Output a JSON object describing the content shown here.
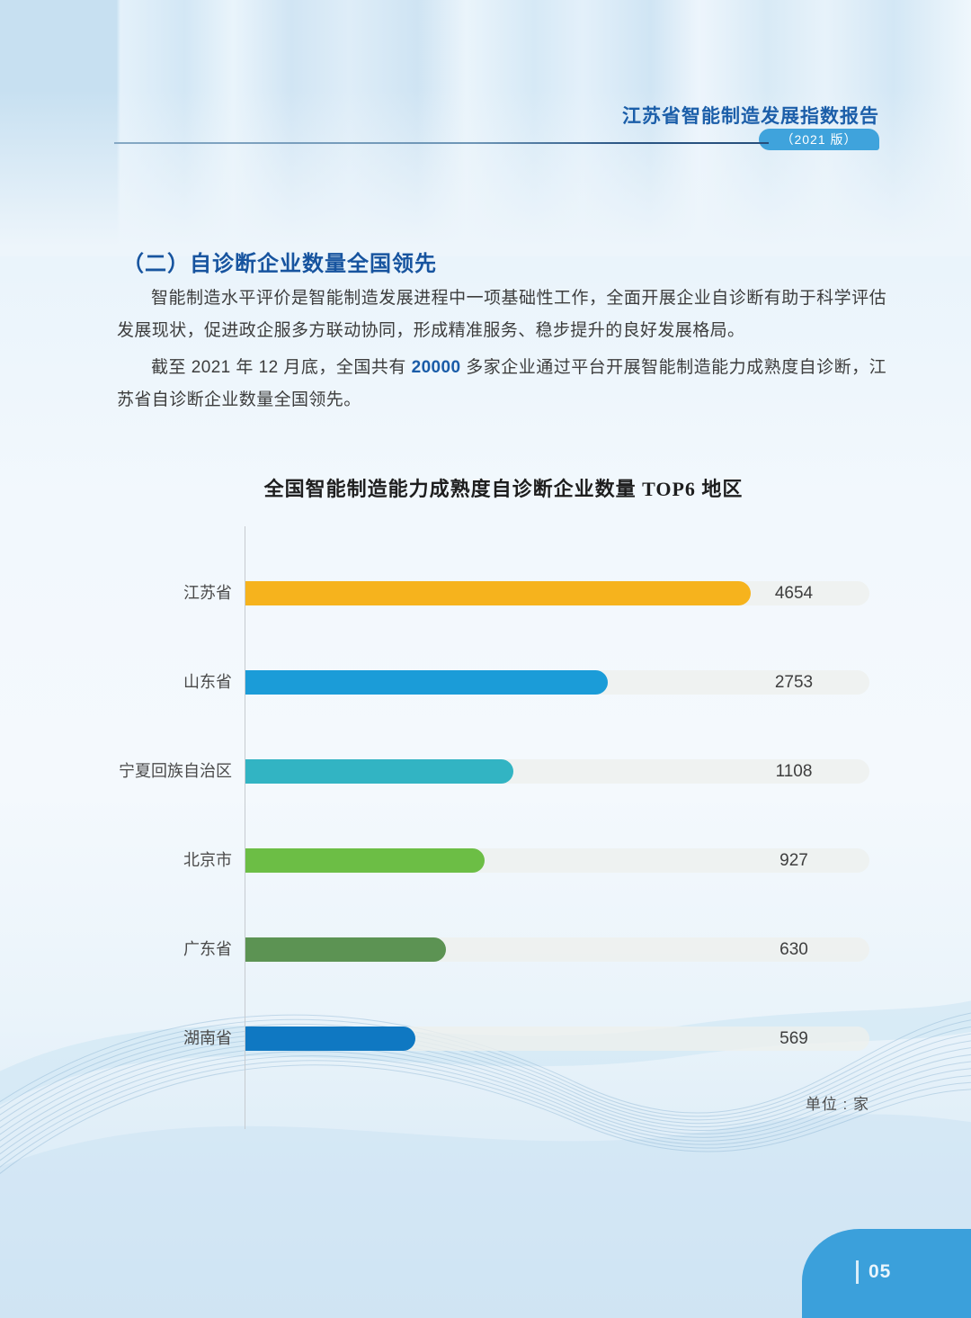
{
  "header": {
    "report_title": "江苏省智能制造发展指数报告",
    "edition_badge": "（2021 版）"
  },
  "section": {
    "heading": "（二）自诊断企业数量全国领先",
    "paragraph_1": "智能制造水平评价是智能制造发展进程中一项基础性工作，全面开展企业自诊断有助于科学评估发展现状，促进政企服多方联动协同，形成精准服务、稳步提升的良好发展格局。",
    "paragraph_2_prefix": "截至 2021 年 12 月底，全国共有 ",
    "paragraph_2_highlight": "20000",
    "paragraph_2_suffix": " 多家企业通过平台开展智能制造能力成熟度自诊断，江苏省自诊断企业数量全国领先。"
  },
  "chart_data": {
    "type": "bar",
    "orientation": "horizontal",
    "title": "全国智能制造能力成熟度自诊断企业数量 TOP6 地区",
    "unit_label": "单位 : 家",
    "categories": [
      "江苏省",
      "山东省",
      "宁夏回族自治区",
      "北京市",
      "广东省",
      "湖南省"
    ],
    "values": [
      4654,
      2753,
      1108,
      927,
      630,
      569
    ],
    "bar_colors": [
      "#f6b31d",
      "#1b9cd8",
      "#32b4c3",
      "#6cbe45",
      "#5c9353",
      "#0f78c2"
    ],
    "bar_length_fractions": [
      0.81,
      0.581,
      0.43,
      0.384,
      0.322,
      0.272
    ],
    "track_color": "rgba(238,240,237,0.8)",
    "axis_line": true,
    "gridlines": false,
    "legend": "none",
    "data_labels": "value shown at right end of each track"
  },
  "footer": {
    "separator": "|",
    "page_number": "05"
  },
  "colors": {
    "header_title": "#1b5ea9",
    "edition_badge_bg": "#3fa3dc",
    "section_heading": "#17549f",
    "body_text": "#3d3d3d",
    "highlight_number": "#1a5ca8",
    "page_badge_bg": "#3ba0db",
    "wave_line": "#7daacd"
  }
}
